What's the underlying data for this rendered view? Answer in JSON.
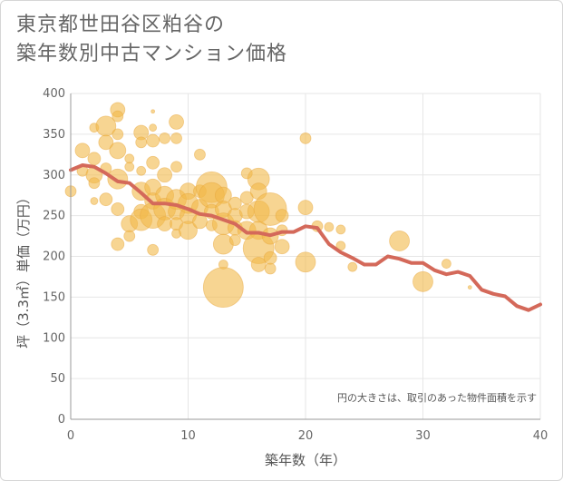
{
  "title_line1": "東京都世田谷区粕谷の",
  "title_line2": "築年数別中古マンション価格",
  "colors": {
    "bubble_fill": "#f2b94a",
    "bubble_stroke": "#e8a53a",
    "line": "#d4695a",
    "grid": "#e6e6e6",
    "axis": "#999999"
  },
  "chart_data": {
    "type": "scatter",
    "xlabel": "築年数（年）",
    "ylabel": "坪（3.3㎡）単価（万円）",
    "xlim": [
      0,
      40
    ],
    "ylim": [
      0,
      400
    ],
    "x_ticks": [
      "0",
      "10",
      "20",
      "30",
      "40"
    ],
    "y_ticks": [
      "0",
      "50",
      "100",
      "150",
      "200",
      "250",
      "300",
      "350",
      "400"
    ],
    "grid": true,
    "note": "円の大きさは、取引のあった物件面積を示す",
    "bubbles": [
      {
        "x": 0,
        "y": 280,
        "r": 6
      },
      {
        "x": 1,
        "y": 330,
        "r": 8
      },
      {
        "x": 1,
        "y": 305,
        "r": 6
      },
      {
        "x": 2,
        "y": 320,
        "r": 7
      },
      {
        "x": 2,
        "y": 300,
        "r": 9
      },
      {
        "x": 2,
        "y": 290,
        "r": 6
      },
      {
        "x": 2,
        "y": 268,
        "r": 4
      },
      {
        "x": 2,
        "y": 358,
        "r": 5
      },
      {
        "x": 3,
        "y": 360,
        "r": 11
      },
      {
        "x": 3,
        "y": 340,
        "r": 8
      },
      {
        "x": 3,
        "y": 308,
        "r": 6
      },
      {
        "x": 3,
        "y": 270,
        "r": 7
      },
      {
        "x": 4,
        "y": 380,
        "r": 8
      },
      {
        "x": 4,
        "y": 372,
        "r": 6
      },
      {
        "x": 4,
        "y": 350,
        "r": 6
      },
      {
        "x": 4,
        "y": 330,
        "r": 9
      },
      {
        "x": 4,
        "y": 295,
        "r": 11
      },
      {
        "x": 4,
        "y": 258,
        "r": 7
      },
      {
        "x": 4,
        "y": 215,
        "r": 7
      },
      {
        "x": 5,
        "y": 320,
        "r": 5
      },
      {
        "x": 5,
        "y": 310,
        "r": 5
      },
      {
        "x": 5,
        "y": 240,
        "r": 9
      },
      {
        "x": 5,
        "y": 225,
        "r": 6
      },
      {
        "x": 6,
        "y": 352,
        "r": 8
      },
      {
        "x": 6,
        "y": 340,
        "r": 6
      },
      {
        "x": 6,
        "y": 305,
        "r": 5
      },
      {
        "x": 6,
        "y": 280,
        "r": 10
      },
      {
        "x": 6,
        "y": 255,
        "r": 8
      },
      {
        "x": 6,
        "y": 245,
        "r": 12
      },
      {
        "x": 7,
        "y": 378,
        "r": 2
      },
      {
        "x": 7,
        "y": 358,
        "r": 4
      },
      {
        "x": 7,
        "y": 342,
        "r": 7
      },
      {
        "x": 7,
        "y": 315,
        "r": 7
      },
      {
        "x": 7,
        "y": 285,
        "r": 9
      },
      {
        "x": 7,
        "y": 268,
        "r": 9
      },
      {
        "x": 7,
        "y": 250,
        "r": 14
      },
      {
        "x": 7,
        "y": 208,
        "r": 6
      },
      {
        "x": 8,
        "y": 345,
        "r": 6
      },
      {
        "x": 8,
        "y": 300,
        "r": 8
      },
      {
        "x": 8,
        "y": 275,
        "r": 10
      },
      {
        "x": 8,
        "y": 258,
        "r": 12
      },
      {
        "x": 8,
        "y": 240,
        "r": 8
      },
      {
        "x": 9,
        "y": 365,
        "r": 8
      },
      {
        "x": 9,
        "y": 345,
        "r": 6
      },
      {
        "x": 9,
        "y": 310,
        "r": 6
      },
      {
        "x": 9,
        "y": 270,
        "r": 11
      },
      {
        "x": 9,
        "y": 255,
        "r": 9
      },
      {
        "x": 9,
        "y": 240,
        "r": 7
      },
      {
        "x": 9,
        "y": 228,
        "r": 5
      },
      {
        "x": 10,
        "y": 280,
        "r": 9
      },
      {
        "x": 10,
        "y": 265,
        "r": 11
      },
      {
        "x": 10,
        "y": 250,
        "r": 9
      },
      {
        "x": 10,
        "y": 232,
        "r": 10
      },
      {
        "x": 11,
        "y": 325,
        "r": 6
      },
      {
        "x": 11,
        "y": 280,
        "r": 7
      },
      {
        "x": 11,
        "y": 260,
        "r": 9
      },
      {
        "x": 11,
        "y": 243,
        "r": 8
      },
      {
        "x": 12,
        "y": 285,
        "r": 17
      },
      {
        "x": 12,
        "y": 275,
        "r": 14
      },
      {
        "x": 12,
        "y": 255,
        "r": 8
      },
      {
        "x": 12,
        "y": 238,
        "r": 6
      },
      {
        "x": 13,
        "y": 275,
        "r": 9
      },
      {
        "x": 13,
        "y": 258,
        "r": 9
      },
      {
        "x": 13,
        "y": 240,
        "r": 12
      },
      {
        "x": 13,
        "y": 215,
        "r": 11
      },
      {
        "x": 13,
        "y": 190,
        "r": 5
      },
      {
        "x": 13,
        "y": 162,
        "r": 22
      },
      {
        "x": 14,
        "y": 265,
        "r": 7
      },
      {
        "x": 14,
        "y": 250,
        "r": 8
      },
      {
        "x": 14,
        "y": 235,
        "r": 8
      },
      {
        "x": 14,
        "y": 220,
        "r": 6
      },
      {
        "x": 15,
        "y": 302,
        "r": 6
      },
      {
        "x": 15,
        "y": 272,
        "r": 7
      },
      {
        "x": 15,
        "y": 255,
        "r": 8
      },
      {
        "x": 15,
        "y": 232,
        "r": 10
      },
      {
        "x": 16,
        "y": 295,
        "r": 12
      },
      {
        "x": 16,
        "y": 280,
        "r": 9
      },
      {
        "x": 16,
        "y": 255,
        "r": 12
      },
      {
        "x": 16,
        "y": 232,
        "r": 10
      },
      {
        "x": 16,
        "y": 210,
        "r": 17
      },
      {
        "x": 16,
        "y": 190,
        "r": 8
      },
      {
        "x": 17,
        "y": 258,
        "r": 18
      },
      {
        "x": 17,
        "y": 225,
        "r": 9
      },
      {
        "x": 17,
        "y": 198,
        "r": 7
      },
      {
        "x": 17,
        "y": 185,
        "r": 6
      },
      {
        "x": 18,
        "y": 250,
        "r": 7
      },
      {
        "x": 18,
        "y": 232,
        "r": 6
      },
      {
        "x": 18,
        "y": 212,
        "r": 8
      },
      {
        "x": 20,
        "y": 345,
        "r": 6
      },
      {
        "x": 20,
        "y": 260,
        "r": 8
      },
      {
        "x": 20,
        "y": 193,
        "r": 11
      },
      {
        "x": 21,
        "y": 237,
        "r": 6
      },
      {
        "x": 22,
        "y": 236,
        "r": 5
      },
      {
        "x": 23,
        "y": 233,
        "r": 5
      },
      {
        "x": 23,
        "y": 213,
        "r": 5
      },
      {
        "x": 24,
        "y": 187,
        "r": 5
      },
      {
        "x": 28,
        "y": 219,
        "r": 11
      },
      {
        "x": 30,
        "y": 169,
        "r": 11
      },
      {
        "x": 32,
        "y": 191,
        "r": 5
      },
      {
        "x": 34,
        "y": 162,
        "r": 2
      }
    ],
    "series": [
      {
        "name": "",
        "x": [
          0,
          1,
          2,
          3,
          4,
          5,
          6,
          7,
          8,
          9,
          10,
          11,
          12,
          13,
          14,
          15,
          16,
          17,
          18,
          19,
          20,
          21,
          22,
          23,
          24,
          25,
          26,
          27,
          28,
          29,
          30,
          31,
          32,
          33,
          34,
          35,
          36,
          37,
          38,
          39,
          40
        ],
        "y": [
          306,
          312,
          310,
          302,
          292,
          290,
          278,
          265,
          265,
          263,
          258,
          252,
          250,
          245,
          240,
          229,
          229,
          226,
          230,
          230,
          237,
          235,
          215,
          205,
          198,
          190,
          190,
          200,
          197,
          192,
          192,
          183,
          178,
          181,
          176,
          159,
          154,
          151,
          139,
          134,
          141
        ]
      }
    ]
  }
}
